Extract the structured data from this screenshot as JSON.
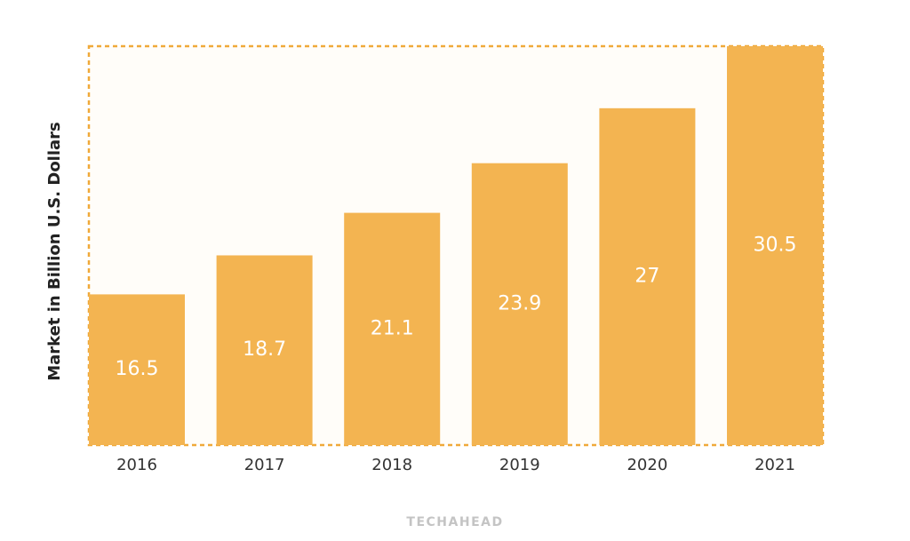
{
  "chart_data": {
    "type": "bar",
    "y_label": "Market in Billion U.S. Dollars",
    "categories": [
      "2016",
      "2017",
      "2018",
      "2019",
      "2020",
      "2021"
    ],
    "values": [
      16.5,
      18.7,
      21.1,
      23.9,
      27,
      30.5
    ],
    "color": "#f3b451",
    "ylim": [
      8,
      30.5
    ],
    "source": "TECHAHEAD"
  }
}
